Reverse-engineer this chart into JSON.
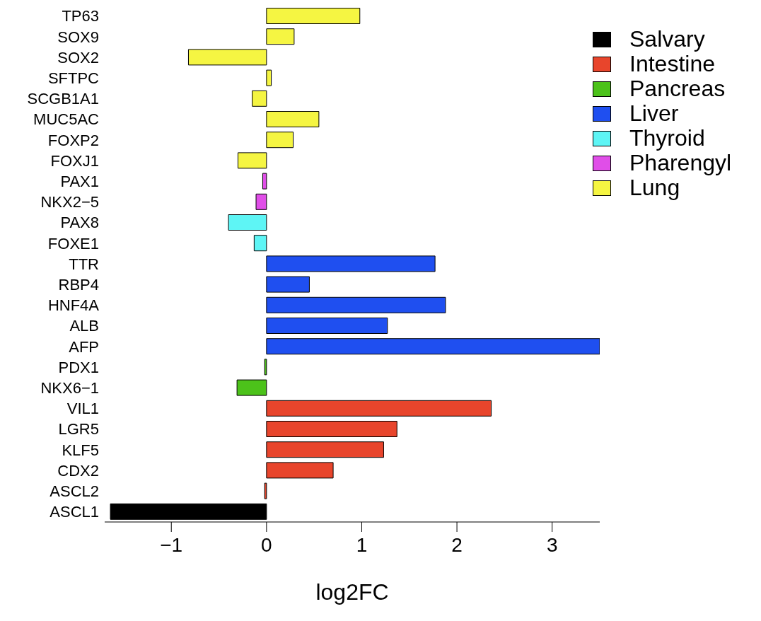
{
  "chart_data": {
    "type": "bar",
    "orientation": "horizontal",
    "xlabel": "log2FC",
    "categories": [
      "TP63",
      "SOX9",
      "SOX2",
      "SFTPC",
      "SCGB1A1",
      "MUC5AC",
      "FOXP2",
      "FOXJ1",
      "PAX1",
      "NKX2−5",
      "PAX8",
      "FOXE1",
      "TTR",
      "RBP4",
      "HNF4A",
      "ALB",
      "AFP",
      "PDX1",
      "NKX6−1",
      "VIL1",
      "LGR5",
      "KLF5",
      "CDX2",
      "ASCL2",
      "ASCL1"
    ],
    "series": [
      {
        "name": "Salvary",
        "color": "#000000",
        "values": [
          null,
          null,
          null,
          null,
          null,
          null,
          null,
          null,
          null,
          null,
          null,
          null,
          null,
          null,
          null,
          null,
          null,
          null,
          null,
          null,
          null,
          null,
          null,
          null,
          -1.64
        ]
      },
      {
        "name": "Intestine",
        "color": "#e8452c",
        "values": [
          null,
          null,
          null,
          null,
          null,
          null,
          null,
          null,
          null,
          null,
          null,
          null,
          null,
          null,
          null,
          null,
          null,
          null,
          null,
          2.36,
          1.37,
          1.23,
          0.7,
          -0.02,
          null
        ]
      },
      {
        "name": "Pancreas",
        "color": "#4cc21a",
        "values": [
          null,
          null,
          null,
          null,
          null,
          null,
          null,
          null,
          null,
          null,
          null,
          null,
          null,
          null,
          null,
          null,
          null,
          -0.02,
          -0.31,
          null,
          null,
          null,
          null,
          null,
          null
        ]
      },
      {
        "name": "Liver",
        "color": "#1f4ff0",
        "values": [
          null,
          null,
          null,
          null,
          null,
          null,
          null,
          null,
          null,
          null,
          null,
          null,
          1.77,
          0.45,
          1.88,
          1.27,
          3.5,
          null,
          null,
          null,
          null,
          null,
          null,
          null,
          null
        ]
      },
      {
        "name": "Thyroid",
        "color": "#5ef5f5",
        "values": [
          null,
          null,
          null,
          null,
          null,
          null,
          null,
          null,
          null,
          null,
          -0.4,
          -0.13,
          null,
          null,
          null,
          null,
          null,
          null,
          null,
          null,
          null,
          null,
          null,
          null,
          null
        ]
      },
      {
        "name": "Pharengyl",
        "color": "#e04ee8",
        "values": [
          null,
          null,
          null,
          null,
          null,
          null,
          null,
          null,
          -0.04,
          -0.11,
          null,
          null,
          null,
          null,
          null,
          null,
          null,
          null,
          null,
          null,
          null,
          null,
          null,
          null,
          null
        ]
      },
      {
        "name": "Lung",
        "color": "#f5f542",
        "values": [
          0.98,
          0.29,
          -0.82,
          0.05,
          -0.15,
          0.55,
          0.28,
          -0.3,
          null,
          null,
          null,
          null,
          null,
          null,
          null,
          null,
          null,
          null,
          null,
          null,
          null,
          null,
          null,
          null,
          null
        ]
      }
    ],
    "xlim": [
      -1.7,
      3.5
    ],
    "xticks": [
      {
        "value": -1,
        "label": "−1"
      },
      0,
      1,
      2,
      3
    ],
    "legend": "top right"
  }
}
